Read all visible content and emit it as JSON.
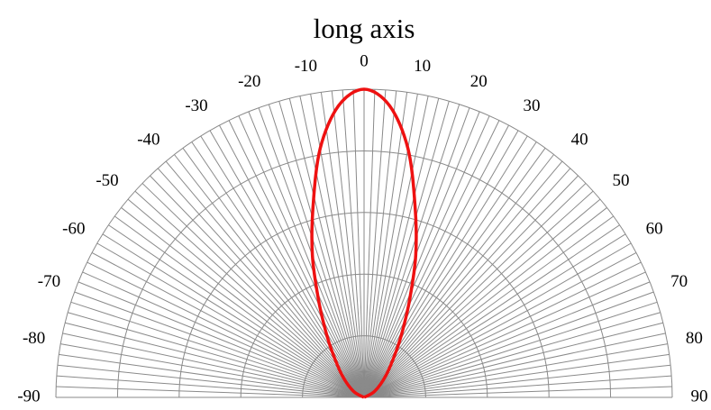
{
  "chart_data": {
    "type": "polar",
    "subtype": "half-polar radiation pattern",
    "title": "long axis",
    "angle_range": [
      -90,
      90
    ],
    "angle_tick_step": 10,
    "angle_tick_labels": [
      "-90",
      "-80",
      "-70",
      "-60",
      "-50",
      "-40",
      "-30",
      "-20",
      "-10",
      "0",
      "10",
      "20",
      "30",
      "40",
      "50",
      "60",
      "70",
      "80",
      "90"
    ],
    "radial_gridline_step_deg": 2,
    "radial_range": [
      0,
      1
    ],
    "radial_rings": [
      0.2,
      0.4,
      0.6,
      0.8,
      1.0
    ],
    "radial_tick_labels_shown": false,
    "grid": true,
    "series": [
      {
        "color": "#ee1111",
        "points": [
          {
            "angle": -90,
            "r": 0.0
          },
          {
            "angle": -60,
            "r": 0.04
          },
          {
            "angle": -45,
            "r": 0.1
          },
          {
            "angle": -35,
            "r": 0.18
          },
          {
            "angle": -30,
            "r": 0.25
          },
          {
            "angle": -25,
            "r": 0.35
          },
          {
            "angle": -20,
            "r": 0.49
          },
          {
            "angle": -15,
            "r": 0.64
          },
          {
            "angle": -10,
            "r": 0.82
          },
          {
            "angle": -5,
            "r": 0.95
          },
          {
            "angle": 0,
            "r": 1.0
          },
          {
            "angle": 5,
            "r": 0.95
          },
          {
            "angle": 10,
            "r": 0.82
          },
          {
            "angle": 15,
            "r": 0.64
          },
          {
            "angle": 20,
            "r": 0.49
          },
          {
            "angle": 25,
            "r": 0.35
          },
          {
            "angle": 30,
            "r": 0.25
          },
          {
            "angle": 35,
            "r": 0.18
          },
          {
            "angle": 45,
            "r": 0.1
          },
          {
            "angle": 60,
            "r": 0.04
          },
          {
            "angle": 90,
            "r": 0.0
          }
        ]
      }
    ]
  },
  "colors": {
    "grid": "#8a8a8a",
    "curve": "#ee1111",
    "text": "#000000",
    "background": "#ffffff"
  }
}
